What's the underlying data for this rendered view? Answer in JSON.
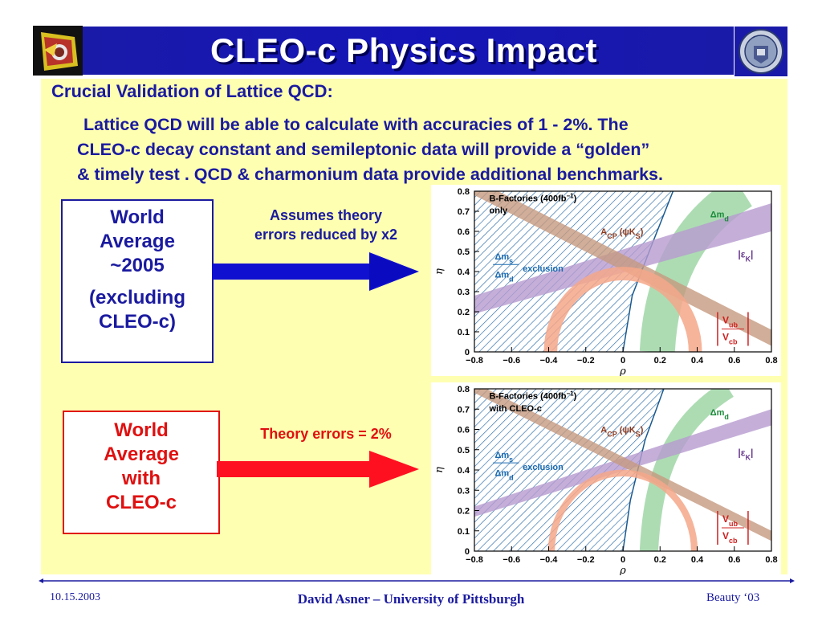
{
  "slide": {
    "title": "CLEO-c Physics Impact",
    "heading": "Crucial Validation of Lattice QCD:",
    "paragraph": [
      "Lattice QCD will be able to calculate with accuracies of 1 - 2%. The",
      "CLEO-c decay constant and semileptonic data will provide a “golden”",
      "& timely test . QCD & charmonium data provide additional benchmarks."
    ]
  },
  "blue_box": {
    "lines": [
      "World",
      "Average",
      "~2005",
      "(excluding",
      "CLEO-c)"
    ]
  },
  "red_box": {
    "lines": [
      "World",
      "Average",
      "with",
      "CLEO-c"
    ]
  },
  "blue_arrow_label": [
    "Assumes theory",
    "errors reduced by x2"
  ],
  "red_arrow_label": "Theory errors = 2%",
  "colors": {
    "title_bar": "#1a1aa8",
    "panel": "#ffffb2",
    "text_blue": "#1a1aa0",
    "text_red": "#e01010",
    "arrow_blue": "#1010d0",
    "arrow_red": "#ff1020",
    "band_green": "#9fd6a6",
    "band_purple": "#b79bd0",
    "band_brown": "#c59a80",
    "band_orange": "#f4a78a",
    "hatch_blue": "#2a6aa8"
  },
  "chart_data": [
    {
      "type": "area",
      "legend_title": "B-Factories (400fb",
      "legend_exp": "−1",
      "legend_close": ")",
      "legend_sub": "only",
      "xlabel": "ρ",
      "ylabel": "η",
      "xlim": [
        -0.8,
        0.8
      ],
      "ylim": [
        0,
        0.8
      ],
      "x_ticks": [
        "−0.8",
        "−0.6",
        "−0.4",
        "−0.2",
        "0",
        "0.2",
        "0.4",
        "0.6",
        "0.8"
      ],
      "y_ticks": [
        "0",
        "0.1",
        "0.2",
        "0.3",
        "0.4",
        "0.5",
        "0.6",
        "0.7",
        "0.8"
      ],
      "labels": {
        "acp": "A",
        "acp_sub": "CP",
        "acp_arg": " (ψK",
        "acp_argsub": "S",
        "acp_close": ")",
        "dmd": "Δm",
        "dmd_sub": "d",
        "epsk": "|ε",
        "epsk_sub": "K",
        "epsk_close": "|",
        "ms": "Δm",
        "ms_sub": "s",
        "md": "Δm",
        "md_sub": "d",
        "exclusion": "exclusion",
        "vub": "V",
        "vub_sub": "ub",
        "vcb": "V",
        "vcb_sub": "cb"
      },
      "bands": {
        "dmd_center": [
          0.09,
          0.55,
          0.24,
          0.14
        ],
        "dmd_width": 0.19,
        "epsk": {
          "y_left": [
            0.19,
            0.28
          ],
          "y_right": [
            0.6,
            0.74
          ]
        },
        "acp": {
          "y_left": [
            0.78,
            0.86
          ],
          "y_right": [
            0.03,
            0.11
          ]
        },
        "vub": {
          "r_in": 0.36,
          "r_out": 0.42
        },
        "ms_excl_boundary": [
          [
            0.0,
            0.0
          ],
          [
            0.05,
            0.28
          ],
          [
            0.15,
            0.52
          ],
          [
            0.27,
            0.8
          ]
        ]
      }
    },
    {
      "type": "area",
      "legend_title": "B-Factories (400fb",
      "legend_exp": "−1",
      "legend_close": ")",
      "legend_sub": "with CLEO-c",
      "xlabel": "ρ",
      "ylabel": "η",
      "xlim": [
        -0.8,
        0.8
      ],
      "ylim": [
        0,
        0.8
      ],
      "x_ticks": [
        "−0.8",
        "−0.6",
        "−0.4",
        "−0.2",
        "0",
        "0.2",
        "0.4",
        "0.6",
        "0.8"
      ],
      "y_ticks": [
        "0",
        "0.1",
        "0.2",
        "0.3",
        "0.4",
        "0.5",
        "0.6",
        "0.7",
        "0.8"
      ],
      "labels": {
        "acp": "A",
        "acp_sub": "CP",
        "acp_arg": " (ψK",
        "acp_argsub": "S",
        "acp_close": ")",
        "dmd": "Δm",
        "dmd_sub": "d",
        "epsk": "|ε",
        "epsk_sub": "K",
        "epsk_close": "|",
        "ms": "Δm",
        "ms_sub": "s",
        "md": "Δm",
        "md_sub": "d",
        "exclusion": "exclusion",
        "vub": "V",
        "vub_sub": "ub",
        "vcb": "V",
        "vcb_sub": "cb"
      },
      "bands": {
        "dmd_center": [
          0.09,
          0.52,
          0.2,
          0.12
        ],
        "dmd_width": 0.1,
        "epsk": {
          "y_left": [
            0.17,
            0.22
          ],
          "y_right": [
            0.62,
            0.7
          ]
        },
        "acp": {
          "y_left": [
            0.78,
            0.83
          ],
          "y_right": [
            0.05,
            0.1
          ]
        },
        "vub": {
          "r_in": 0.37,
          "r_out": 0.4
        },
        "ms_excl_boundary": [
          [
            0.0,
            0.0
          ],
          [
            0.04,
            0.25
          ],
          [
            0.12,
            0.55
          ],
          [
            0.22,
            0.8
          ]
        ]
      }
    }
  ],
  "footer": {
    "date": "10.15.2003",
    "center": "David Asner – University of Pittsburgh",
    "right": "Beauty ‘03"
  }
}
